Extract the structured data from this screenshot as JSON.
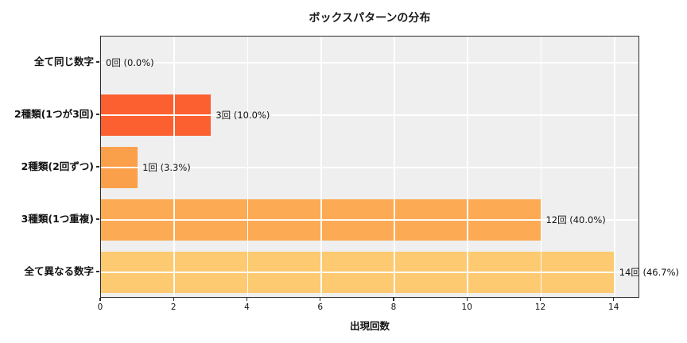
{
  "title": "ボックスパターンの分布",
  "chart_data": {
    "type": "bar",
    "orientation": "horizontal",
    "title": "ボックスパターンの分布",
    "xlabel": "出現回数",
    "ylabel": "",
    "categories": [
      "全て同じ数字",
      "2種類(1つが3回)",
      "2種類(2回ずつ)",
      "3種類(1つ重複)",
      "全て異なる数字"
    ],
    "values": [
      0,
      3,
      1,
      12,
      14
    ],
    "value_labels": [
      "0回 (0.0%)",
      "3回 (10.0%)",
      "1回 (3.3%)",
      "12回 (40.0%)",
      "14回 (46.7%)"
    ],
    "bar_colors": [
      "#FC5F30",
      "#FC5F30",
      "#FBA04A",
      "#FCAB54",
      "#FDC971"
    ],
    "xlim": [
      0,
      14.7
    ],
    "xticks": [
      0,
      2,
      4,
      6,
      8,
      10,
      12,
      14
    ],
    "grid": true,
    "grid_color": "#FFFFFF",
    "plot_bg": "#EFEFEF",
    "spine_color": "#2B2B2B",
    "bar_fraction": 0.8,
    "legend": null
  }
}
